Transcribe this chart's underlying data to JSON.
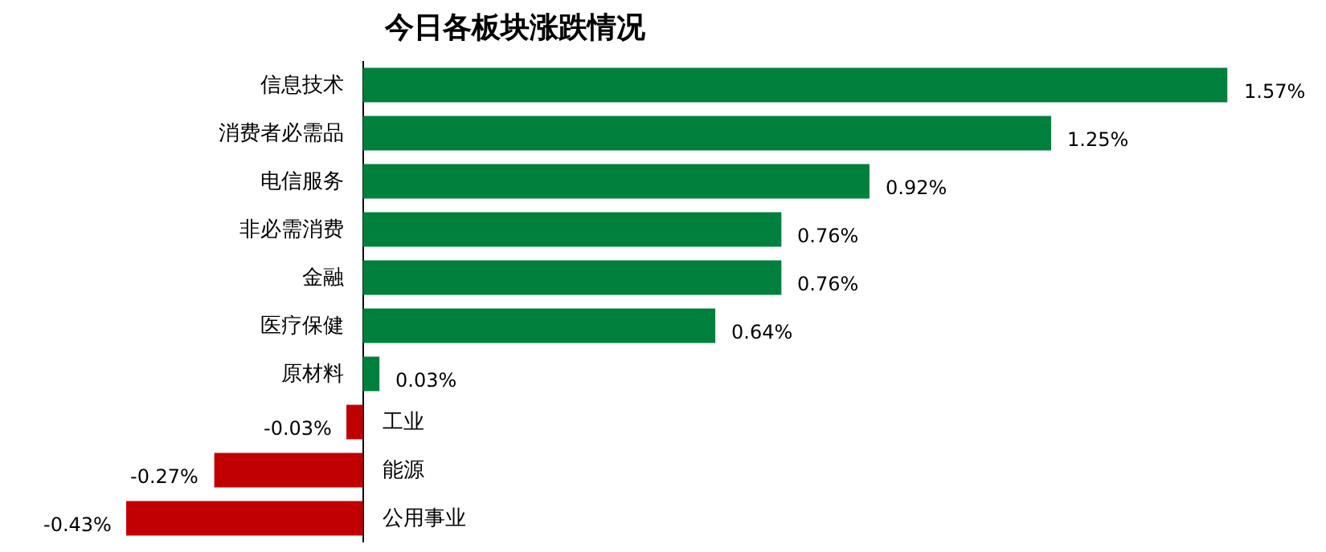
{
  "chart_data": {
    "type": "bar",
    "orientation": "horizontal",
    "title": "今日各板块涨跌情况",
    "categories": [
      "信息技术",
      "消费者必需品",
      "电信服务",
      "非必需消费",
      "金融",
      "医疗保健",
      "原材料",
      "工业",
      "能源",
      "公用事业"
    ],
    "values": [
      1.57,
      1.25,
      0.92,
      0.76,
      0.76,
      0.64,
      0.03,
      -0.03,
      -0.27,
      -0.43
    ],
    "colors": [
      "#00803c",
      "#00803c",
      "#00803c",
      "#00803c",
      "#00803c",
      "#00803c",
      "#00803c",
      "#c00000",
      "#c00000",
      "#c00000"
    ],
    "value_labels": [
      "1.57%",
      "1.25%",
      "0.92%",
      "0.76%",
      "0.76%",
      "0.64%",
      "0.03%",
      "-0.03%",
      "-0.27%",
      "-0.43%"
    ],
    "grid": false,
    "legend": false
  }
}
